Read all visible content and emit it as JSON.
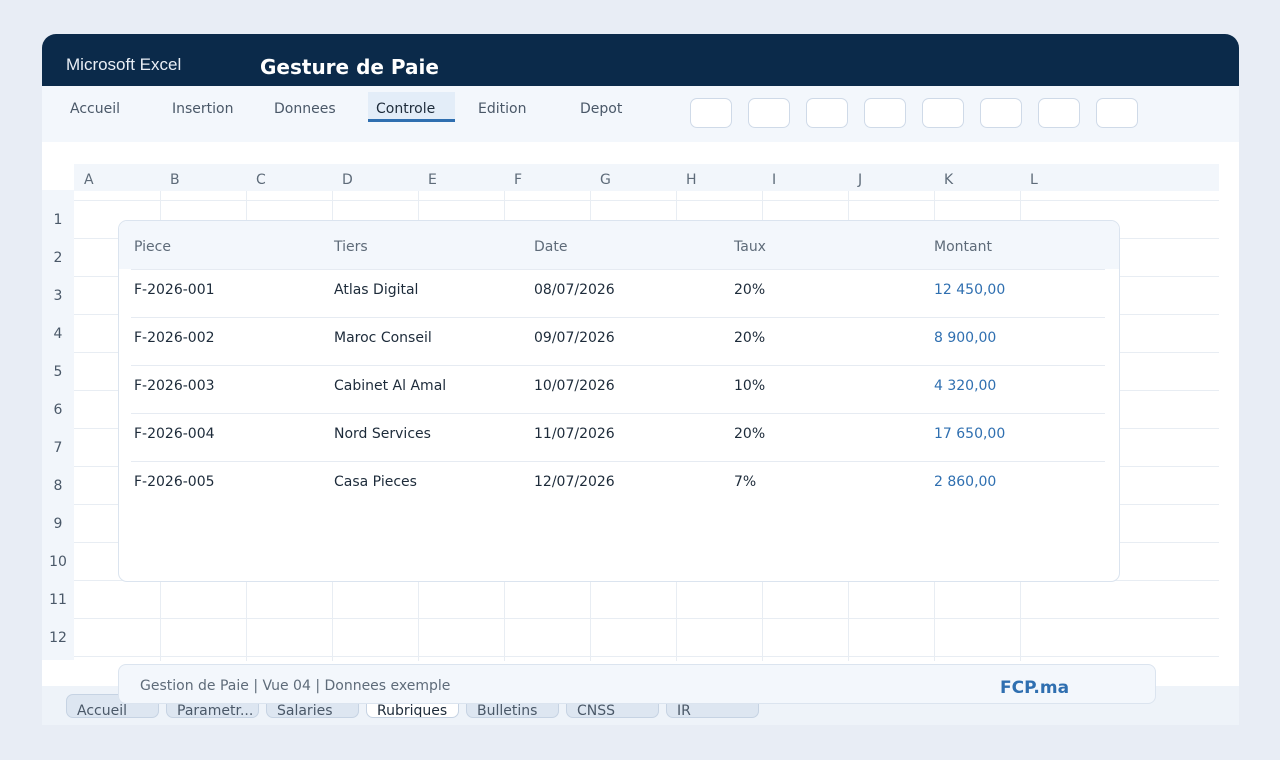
{
  "app": {
    "name": "Microsoft Excel",
    "document_title": "Gesture de Paie"
  },
  "ribbon": {
    "tabs": [
      "Accueil",
      "Insertion",
      "Donnees",
      "Controle",
      "Edition",
      "Depot"
    ],
    "active_tab": "Controle"
  },
  "grid": {
    "columns": [
      "A",
      "B",
      "C",
      "D",
      "E",
      "F",
      "G",
      "H",
      "I",
      "J",
      "K",
      "L"
    ],
    "rows": [
      "1",
      "2",
      "3",
      "4",
      "5",
      "6",
      "7",
      "8",
      "9",
      "10",
      "11",
      "12"
    ]
  },
  "table": {
    "headers": [
      "Piece",
      "Tiers",
      "Date",
      "Taux",
      "Montant"
    ],
    "rows": [
      [
        "F-2026-001",
        "Atlas Digital",
        "08/07/2026",
        "20%",
        "12 450,00"
      ],
      [
        "F-2026-002",
        "Maroc Conseil",
        "09/07/2026",
        "20%",
        "8 900,00"
      ],
      [
        "F-2026-003",
        "Cabinet Al Amal",
        "10/07/2026",
        "10%",
        "4 320,00"
      ],
      [
        "F-2026-004",
        "Nord Services",
        "11/07/2026",
        "20%",
        "17 650,00"
      ],
      [
        "F-2026-005",
        "Casa Pieces",
        "12/07/2026",
        "7%",
        "2 860,00"
      ]
    ]
  },
  "footer": {
    "text": "Gestion de Paie | Vue 04 | Donnees exemple",
    "brand": "FCP.ma"
  },
  "sheets": {
    "tabs": [
      "Accueil",
      "Parametr...",
      "Salaries",
      "Rubriques",
      "Bulletins",
      "CNSS",
      "IR"
    ],
    "active": "Rubriques"
  },
  "colors": {
    "titlebar": "#0b2a4a",
    "accent": "#2f6fb0",
    "background": "#e8edf5"
  }
}
